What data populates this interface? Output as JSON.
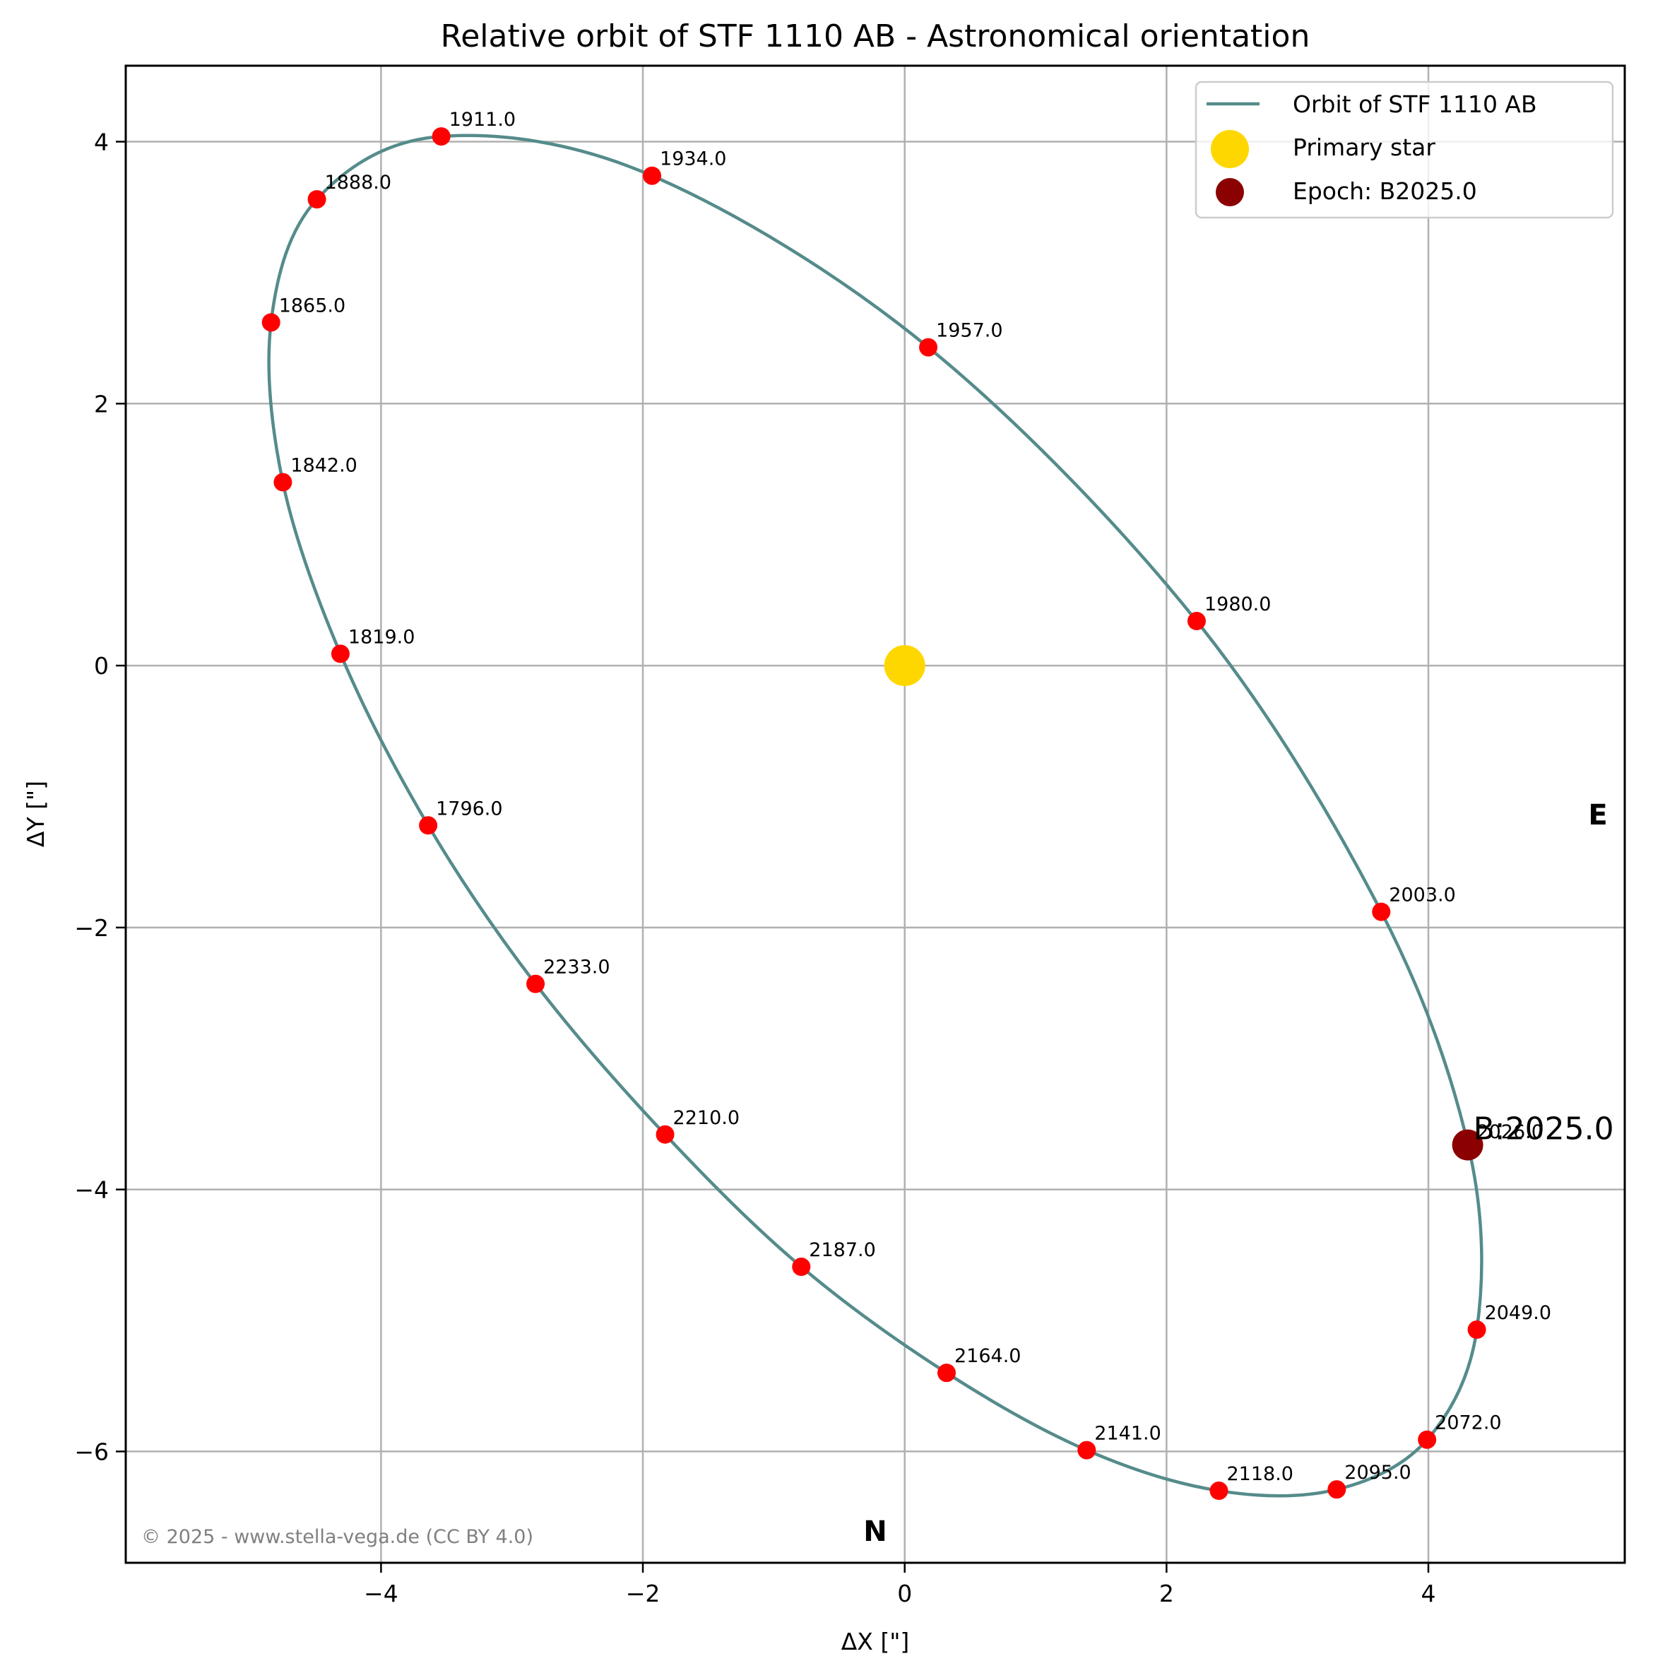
{
  "chart_data": {
    "type": "scatter",
    "title": "Relative orbit of STF 1110 AB - Astronomical orientation",
    "xlabel": "ΔX [\"]",
    "ylabel": "ΔY [\"]",
    "xlim": [
      -5.95,
      5.5
    ],
    "ylim": [
      -6.85,
      4.58
    ],
    "grid": true,
    "legend_position": "upper right",
    "x_ticks": [
      -4,
      -2,
      0,
      2,
      4
    ],
    "x_tick_labels": [
      "−4",
      "−2",
      "0",
      "2",
      "4"
    ],
    "y_ticks": [
      4,
      2,
      0,
      -2,
      -4,
      -6
    ],
    "y_tick_labels": [
      "4",
      "2",
      "0",
      "−2",
      "−4",
      "−6"
    ],
    "legend": [
      {
        "label": "Orbit of STF 1110 AB",
        "kind": "line",
        "color": "#558b8b"
      },
      {
        "label": "Primary star",
        "kind": "marker",
        "color": "#ffd700"
      },
      {
        "label": "Epoch: B2025.0",
        "kind": "marker",
        "color": "#8b0000"
      }
    ],
    "primary_star": {
      "x": 0,
      "y": 0,
      "color": "#ffd700"
    },
    "epoch": {
      "label": "B:2025.0",
      "x": 4.3,
      "y": -3.66,
      "color": "#8b0000"
    },
    "orbit_points": [
      {
        "label": "1796.0",
        "x": -3.64,
        "y": -1.22
      },
      {
        "label": "1819.0",
        "x": -4.31,
        "y": 0.09
      },
      {
        "label": "1842.0",
        "x": -4.75,
        "y": 1.4
      },
      {
        "label": "1865.0",
        "x": -4.84,
        "y": 2.62
      },
      {
        "label": "1888.0",
        "x": -4.49,
        "y": 3.56
      },
      {
        "label": "1911.0",
        "x": -3.54,
        "y": 4.04
      },
      {
        "label": "1934.0",
        "x": -1.93,
        "y": 3.74
      },
      {
        "label": "1957.0",
        "x": 0.18,
        "y": 2.43
      },
      {
        "label": "1980.0",
        "x": 2.23,
        "y": 0.34
      },
      {
        "label": "2003.0",
        "x": 3.64,
        "y": -1.88
      },
      {
        "label": "2026.0",
        "x": 4.31,
        "y": -3.69
      },
      {
        "label": "2049.0",
        "x": 4.37,
        "y": -5.07
      },
      {
        "label": "2072.0",
        "x": 3.99,
        "y": -5.91
      },
      {
        "label": "2095.0",
        "x": 3.3,
        "y": -6.29
      },
      {
        "label": "2118.0",
        "x": 2.4,
        "y": -6.3
      },
      {
        "label": "2141.0",
        "x": 1.39,
        "y": -5.99
      },
      {
        "label": "2164.0",
        "x": 0.32,
        "y": -5.4
      },
      {
        "label": "2187.0",
        "x": -0.79,
        "y": -4.59
      },
      {
        "label": "2210.0",
        "x": -1.83,
        "y": -3.58
      },
      {
        "label": "2233.0",
        "x": -2.82,
        "y": -2.43
      }
    ],
    "colors": {
      "orbit": "#558b8b",
      "points": "#ff0000",
      "grid": "#b0b0b0"
    },
    "annotations": {
      "east": "E",
      "north": "N",
      "copyright": "© 2025 - www.stella-vega.de (CC BY 4.0)"
    }
  }
}
